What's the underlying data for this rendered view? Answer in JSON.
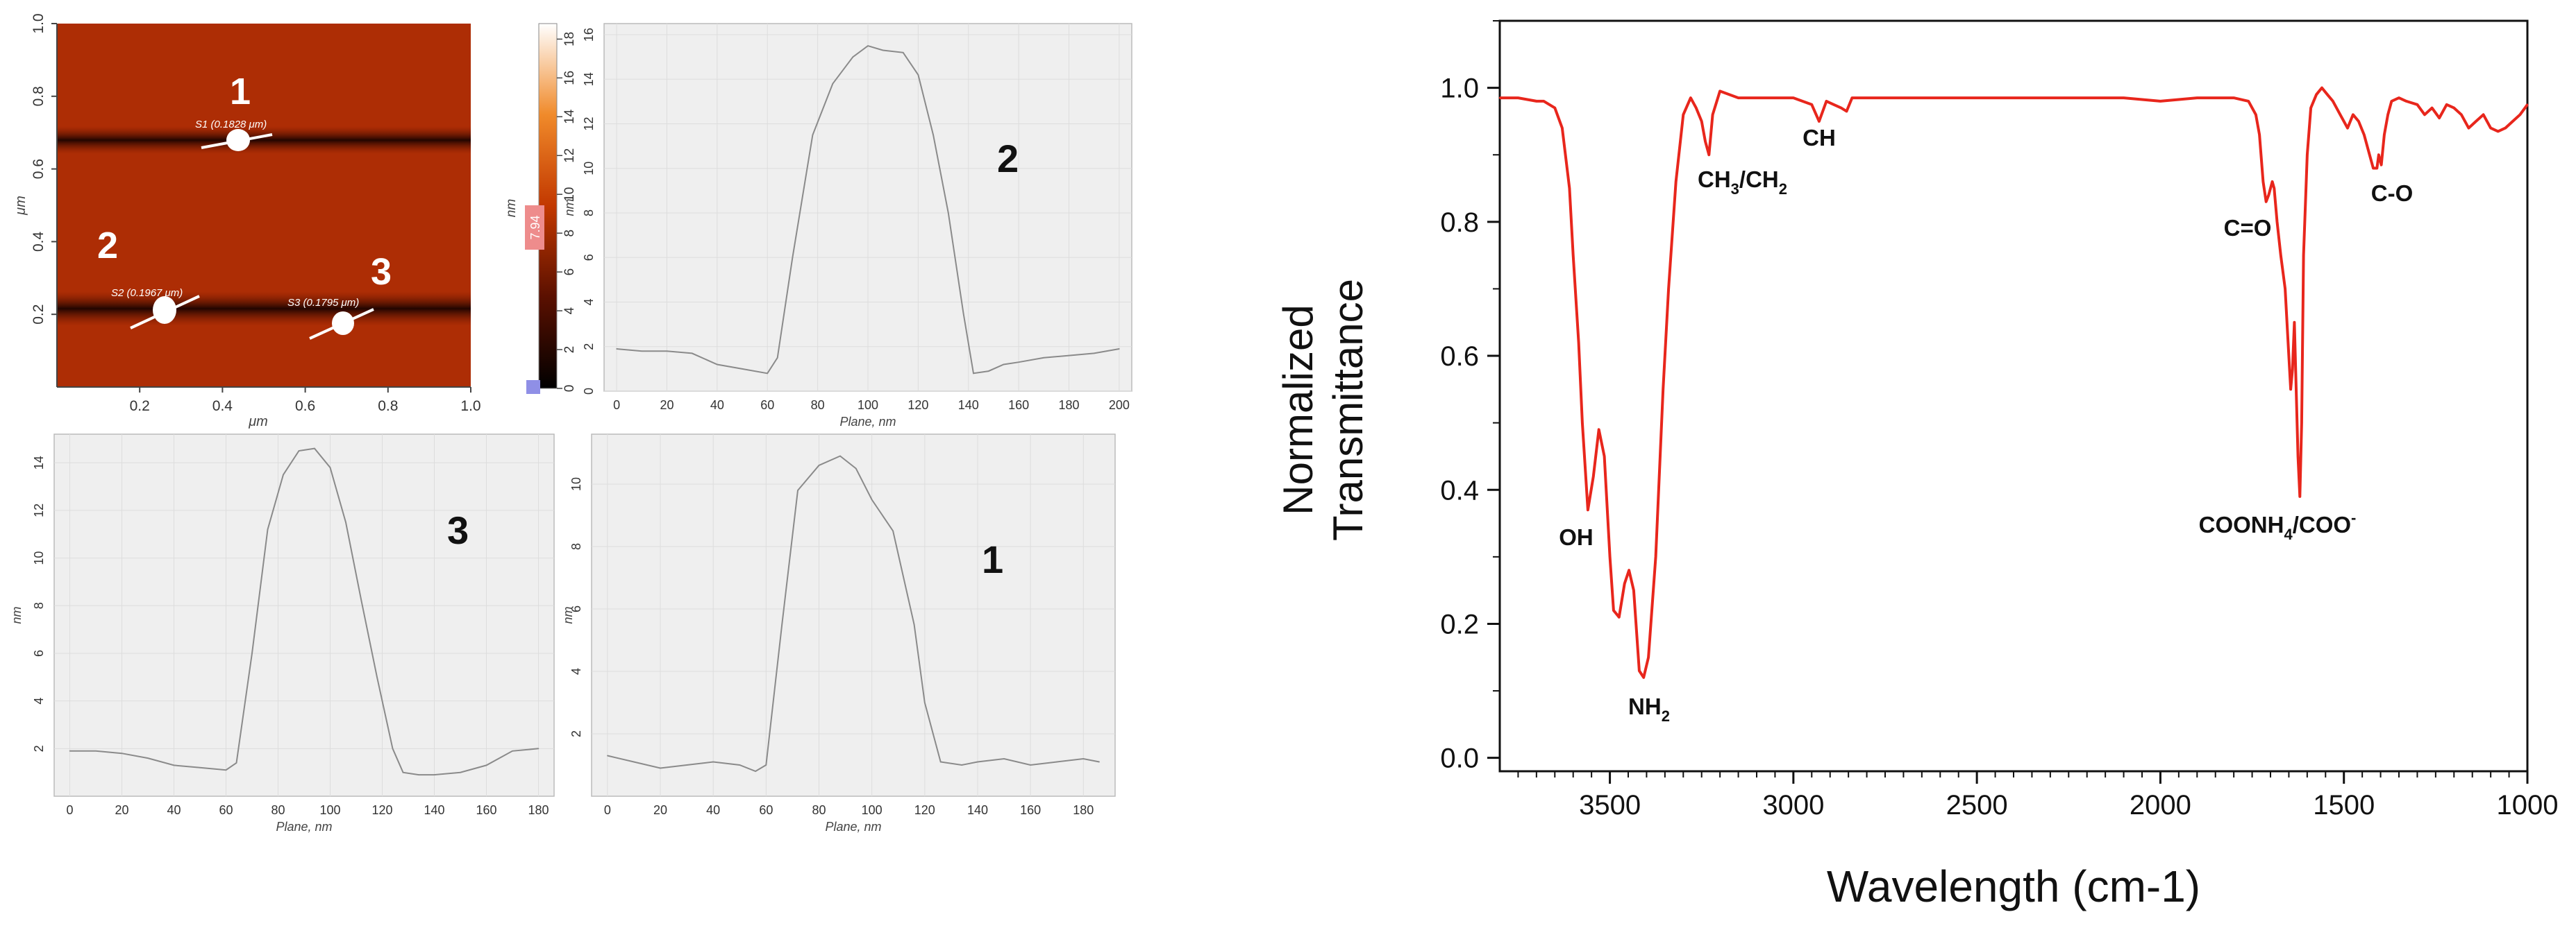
{
  "afm": {
    "x_axis": {
      "label": "μm",
      "ticks": [
        "0.2",
        "0.4",
        "0.6",
        "0.8",
        "1.0"
      ]
    },
    "y_axis": {
      "label": "μm",
      "ticks": [
        "0.2",
        "0.4",
        "0.6",
        "0.8",
        "1.0"
      ]
    },
    "colorbar": {
      "label": "nm",
      "ticks": [
        "0",
        "2",
        "4",
        "6",
        "8",
        "10",
        "12",
        "14",
        "16",
        "18"
      ],
      "marker": "7.94",
      "min": 0,
      "max": 18.8
    },
    "sections": [
      {
        "number": "1",
        "label": "S1 (0.1828 μm)"
      },
      {
        "number": "2",
        "label": "S2 (0.1967 μm)"
      },
      {
        "number": "3",
        "label": "S3 (0.1795 μm)"
      }
    ]
  },
  "chart_data": [
    {
      "id": "profile2",
      "type": "line",
      "panel_label": "2",
      "xlabel": "Plane, nm",
      "ylabel": "nm",
      "xlim": [
        -5,
        205
      ],
      "ylim": [
        0,
        16.5
      ],
      "xticks": [
        "0",
        "20",
        "40",
        "60",
        "80",
        "100",
        "120",
        "140",
        "160",
        "180",
        "200"
      ],
      "yticks": [
        "0",
        "2",
        "4",
        "6",
        "8",
        "10",
        "12",
        "14",
        "16"
      ],
      "x": [
        0,
        10,
        20,
        30,
        40,
        50,
        60,
        64,
        70,
        78,
        86,
        94,
        100,
        106,
        114,
        120,
        126,
        132,
        138,
        142,
        148,
        154,
        160,
        170,
        180,
        190,
        200
      ],
      "y": [
        1.9,
        1.8,
        1.8,
        1.7,
        1.2,
        1.0,
        0.8,
        1.5,
        6.0,
        11.5,
        13.8,
        15.0,
        15.5,
        15.3,
        15.2,
        14.2,
        11.5,
        8.0,
        3.5,
        0.8,
        0.9,
        1.2,
        1.3,
        1.5,
        1.6,
        1.7,
        1.9
      ]
    },
    {
      "id": "profile3",
      "type": "line",
      "panel_label": "3",
      "xlabel": "Plane, nm",
      "ylabel": "nm",
      "xlim": [
        -6,
        186
      ],
      "ylim": [
        0,
        15.2
      ],
      "xticks": [
        "0",
        "20",
        "40",
        "60",
        "80",
        "100",
        "120",
        "140",
        "160",
        "180"
      ],
      "yticks": [
        "2",
        "4",
        "6",
        "8",
        "10",
        "12",
        "14"
      ],
      "x": [
        0,
        10,
        20,
        30,
        40,
        50,
        60,
        64,
        70,
        76,
        82,
        88,
        94,
        100,
        106,
        112,
        118,
        124,
        128,
        134,
        140,
        150,
        160,
        170,
        180
      ],
      "y": [
        1.9,
        1.9,
        1.8,
        1.6,
        1.3,
        1.2,
        1.1,
        1.4,
        6.0,
        11.2,
        13.5,
        14.5,
        14.6,
        13.8,
        11.5,
        8.2,
        5.0,
        2.0,
        1.0,
        0.9,
        0.9,
        1.0,
        1.3,
        1.9,
        2.0
      ]
    },
    {
      "id": "profile1",
      "type": "line",
      "panel_label": "1",
      "xlabel": "Plane, nm",
      "ylabel": "nm",
      "xlim": [
        -6,
        192
      ],
      "ylim": [
        0,
        11.6
      ],
      "xticks": [
        "0",
        "20",
        "40",
        "60",
        "80",
        "100",
        "120",
        "140",
        "160",
        "180"
      ],
      "yticks": [
        "2",
        "4",
        "6",
        "8",
        "10"
      ],
      "x": [
        0,
        10,
        20,
        30,
        40,
        50,
        56,
        60,
        66,
        72,
        80,
        88,
        94,
        100,
        108,
        116,
        120,
        126,
        134,
        140,
        150,
        160,
        170,
        180,
        186
      ],
      "y": [
        1.3,
        1.1,
        0.9,
        1.0,
        1.1,
        1.0,
        0.8,
        1.0,
        5.5,
        9.8,
        10.6,
        10.9,
        10.5,
        9.5,
        8.5,
        5.5,
        3.0,
        1.1,
        1.0,
        1.1,
        1.2,
        1.0,
        1.1,
        1.2,
        1.1
      ]
    },
    {
      "id": "ftir",
      "type": "line",
      "xlabel": "Wavelength (cm-1)",
      "ylabel": "Normalized Transmittance",
      "xlim": [
        3800,
        1000
      ],
      "ylim": [
        -0.02,
        1.1
      ],
      "xticks": [
        "3500",
        "3000",
        "2500",
        "2000",
        "1500",
        "1000"
      ],
      "yticks": [
        "0.0",
        "0.2",
        "0.4",
        "0.6",
        "0.8",
        "1.0"
      ],
      "color": "#e8261c",
      "x": [
        3800,
        3750,
        3700,
        3680,
        3650,
        3630,
        3610,
        3600,
        3585,
        3575,
        3560,
        3545,
        3530,
        3515,
        3500,
        3490,
        3475,
        3460,
        3448,
        3435,
        3420,
        3408,
        3395,
        3375,
        3355,
        3340,
        3320,
        3300,
        3280,
        3265,
        3250,
        3240,
        3230,
        3220,
        3200,
        3150,
        3100,
        3050,
        3000,
        2950,
        2930,
        2910,
        2890,
        2870,
        2855,
        2840,
        2800,
        2700,
        2600,
        2500,
        2400,
        2300,
        2200,
        2100,
        2000,
        1900,
        1800,
        1760,
        1740,
        1730,
        1720,
        1712,
        1705,
        1700,
        1695,
        1690,
        1682,
        1672,
        1660,
        1650,
        1645,
        1640,
        1635,
        1630,
        1625,
        1620,
        1615,
        1610,
        1600,
        1590,
        1575,
        1560,
        1545,
        1530,
        1510,
        1490,
        1475,
        1460,
        1445,
        1430,
        1420,
        1410,
        1405,
        1398,
        1390,
        1380,
        1370,
        1350,
        1330,
        1300,
        1280,
        1260,
        1240,
        1220,
        1200,
        1180,
        1160,
        1140,
        1120,
        1100,
        1080,
        1060,
        1040,
        1020,
        1000
      ],
      "y": [
        0.985,
        0.985,
        0.98,
        0.98,
        0.97,
        0.94,
        0.85,
        0.75,
        0.62,
        0.5,
        0.37,
        0.42,
        0.49,
        0.45,
        0.3,
        0.22,
        0.21,
        0.26,
        0.28,
        0.25,
        0.13,
        0.12,
        0.15,
        0.3,
        0.55,
        0.7,
        0.86,
        0.96,
        0.985,
        0.97,
        0.95,
        0.92,
        0.9,
        0.96,
        0.995,
        0.985,
        0.985,
        0.985,
        0.985,
        0.975,
        0.95,
        0.98,
        0.975,
        0.97,
        0.965,
        0.985,
        0.985,
        0.985,
        0.985,
        0.985,
        0.985,
        0.985,
        0.985,
        0.985,
        0.98,
        0.985,
        0.985,
        0.98,
        0.96,
        0.93,
        0.86,
        0.83,
        0.84,
        0.85,
        0.86,
        0.85,
        0.8,
        0.75,
        0.7,
        0.6,
        0.55,
        0.58,
        0.65,
        0.55,
        0.45,
        0.39,
        0.5,
        0.75,
        0.9,
        0.97,
        0.99,
        1.0,
        0.99,
        0.98,
        0.96,
        0.94,
        0.96,
        0.95,
        0.93,
        0.9,
        0.88,
        0.88,
        0.9,
        0.885,
        0.93,
        0.96,
        0.98,
        0.985,
        0.98,
        0.975,
        0.96,
        0.97,
        0.955,
        0.975,
        0.97,
        0.96,
        0.94,
        0.95,
        0.96,
        0.94,
        0.935,
        0.94,
        0.95,
        0.96,
        0.975
      ],
      "annotations": [
        {
          "text": "OH"
        },
        {
          "text": "NH",
          "sub": "2"
        },
        {
          "text": "CH",
          "sub": "3",
          "text2": "/CH",
          "sub2": "2"
        },
        {
          "text": "CH"
        },
        {
          "text": "C=O"
        },
        {
          "text": "C-O"
        },
        {
          "text": "COONH",
          "sub": "4",
          "text2": "/COO",
          "sup": "-"
        }
      ]
    }
  ]
}
